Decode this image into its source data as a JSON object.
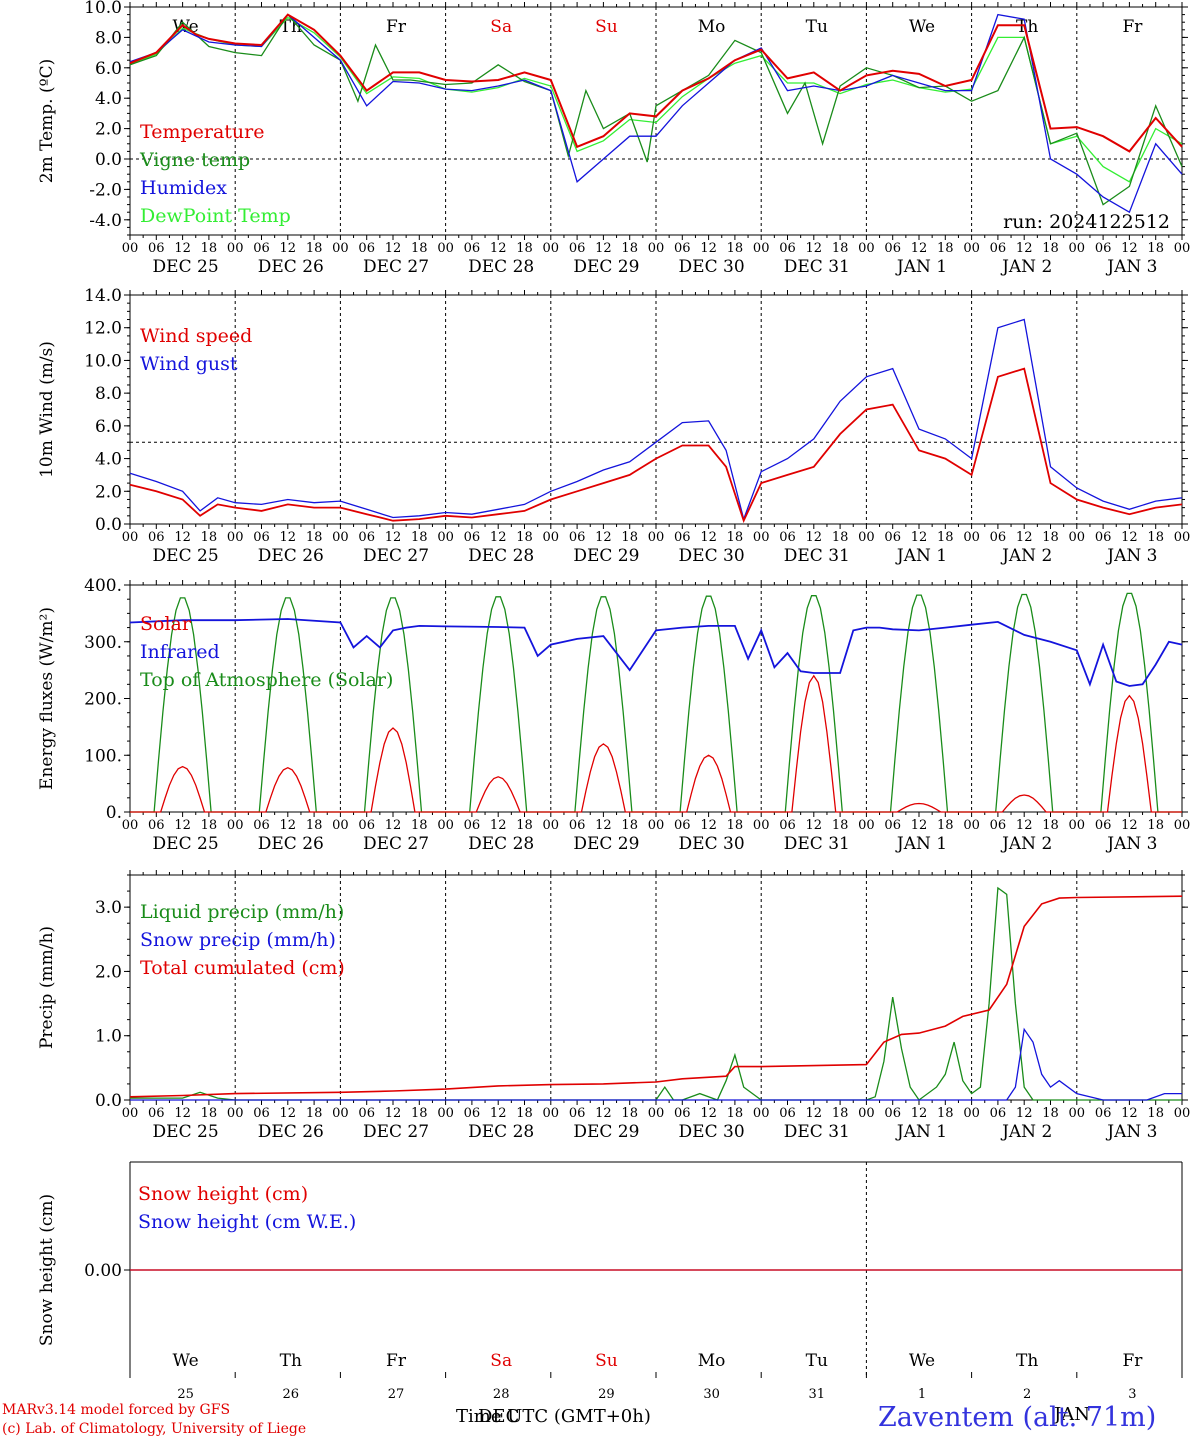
{
  "colors": {
    "red": "#e00000",
    "green": "#1a8c1a",
    "blue": "#1414dc",
    "lime": "#33ee33",
    "black": "#000000"
  },
  "days": {
    "weekdays": [
      "We",
      "Th",
      "Fr",
      "Sa",
      "Su",
      "Mo",
      "Tu",
      "We",
      "Th",
      "Fr"
    ],
    "weekday_colors": [
      "black",
      "black",
      "black",
      "red",
      "red",
      "black",
      "black",
      "black",
      "black",
      "black"
    ],
    "dates": [
      "DEC 25",
      "DEC 26",
      "DEC 27",
      "DEC 28",
      "DEC 29",
      "DEC 30",
      "DEC 31",
      "JAN 1",
      "JAN 2",
      "JAN 3"
    ],
    "day_numbers": [
      "25",
      "26",
      "27",
      "28",
      "29",
      "30",
      "31",
      "1",
      "2",
      "3"
    ],
    "hour_ticks": [
      "00",
      "06",
      "12",
      "18"
    ]
  },
  "chart_data": [
    {
      "type": "line",
      "id": "temperature",
      "ylabel": "2m Temp. (ºC)",
      "ylim": [
        -5,
        10
      ],
      "yticks": [
        "-4.0",
        "-2.0",
        "0.0",
        "2.0",
        "4.0",
        "6.0",
        "8.0",
        "10.0"
      ],
      "yticks_values": [
        -4,
        -2,
        0,
        2,
        4,
        6,
        8,
        10
      ],
      "xlim_hours": [
        0,
        240
      ],
      "reference_line": 0,
      "annotation": "run: 2024122512",
      "series": [
        {
          "name": "Temperature",
          "color": "red",
          "x": [
            0,
            6,
            12,
            15,
            18,
            24,
            30,
            36,
            42,
            48,
            54,
            60,
            66,
            72,
            78,
            84,
            90,
            96,
            102,
            108,
            114,
            120,
            126,
            132,
            138,
            144,
            150,
            156,
            162,
            168,
            174,
            180,
            186,
            192,
            198,
            204,
            210,
            216,
            222,
            228,
            234,
            240
          ],
          "y": [
            6.3,
            7.0,
            8.8,
            8.2,
            7.9,
            7.6,
            7.5,
            9.5,
            8.5,
            6.8,
            4.5,
            5.7,
            5.7,
            5.2,
            5.1,
            5.2,
            5.7,
            5.2,
            0.8,
            1.5,
            3.0,
            2.8,
            4.5,
            5.3,
            6.5,
            7.2,
            5.3,
            5.7,
            4.5,
            5.5,
            5.8,
            5.6,
            4.8,
            5.2,
            8.8,
            8.8,
            2.0,
            2.1,
            1.5,
            0.5,
            2.7,
            0.8
          ]
        },
        {
          "name": "Vigne temp",
          "color": "green",
          "x": [
            0,
            6,
            12,
            18,
            24,
            30,
            36,
            42,
            48,
            52,
            56,
            60,
            64,
            72,
            78,
            84,
            90,
            96,
            100,
            104,
            108,
            114,
            118,
            120,
            126,
            132,
            138,
            144,
            150,
            154,
            158,
            162,
            168,
            174,
            180,
            186,
            192,
            198,
            204,
            210,
            216,
            222,
            228,
            234,
            240
          ],
          "y": [
            6.2,
            6.8,
            9.0,
            7.4,
            7.0,
            6.8,
            9.5,
            7.5,
            6.5,
            3.8,
            7.5,
            5.2,
            5.2,
            4.9,
            5.0,
            6.2,
            5.1,
            4.5,
            0.2,
            4.5,
            2.0,
            3.0,
            -0.2,
            3.5,
            4.5,
            5.5,
            7.8,
            7.0,
            3.0,
            5.0,
            1.0,
            4.8,
            6.0,
            5.5,
            4.7,
            4.8,
            3.8,
            4.5,
            8.0,
            1.0,
            1.7,
            -3.0,
            -1.8,
            3.5,
            -0.5
          ]
        },
        {
          "name": "Humidex",
          "color": "blue",
          "x": [
            0,
            6,
            12,
            18,
            24,
            30,
            36,
            42,
            48,
            54,
            60,
            66,
            72,
            78,
            84,
            90,
            96,
            102,
            108,
            114,
            120,
            126,
            132,
            138,
            144,
            150,
            156,
            162,
            168,
            174,
            180,
            186,
            192,
            198,
            204,
            210,
            216,
            222,
            228,
            234,
            240
          ],
          "y": [
            6.4,
            7.0,
            8.5,
            7.7,
            7.5,
            7.4,
            9.5,
            8.0,
            6.5,
            3.5,
            5.1,
            5.0,
            4.6,
            4.5,
            4.8,
            5.2,
            4.5,
            -1.5,
            0.0,
            1.5,
            1.5,
            3.5,
            5.0,
            6.5,
            7.3,
            4.5,
            4.8,
            4.5,
            4.8,
            5.5,
            5.0,
            4.5,
            4.5,
            9.5,
            9.2,
            0.0,
            -1.0,
            -2.5,
            -3.5,
            1.0,
            -1.0
          ]
        },
        {
          "name": "DewPoint Temp",
          "color": "lime",
          "x": [
            0,
            6,
            12,
            18,
            24,
            30,
            36,
            42,
            48,
            54,
            60,
            66,
            72,
            78,
            84,
            90,
            96,
            102,
            108,
            114,
            120,
            126,
            132,
            138,
            144,
            150,
            156,
            162,
            168,
            174,
            180,
            186,
            192,
            198,
            204,
            210,
            216,
            222,
            228,
            234,
            240
          ],
          "y": [
            6.2,
            6.9,
            8.6,
            7.9,
            7.5,
            7.4,
            9.3,
            8.3,
            6.7,
            4.3,
            5.4,
            5.3,
            4.6,
            4.4,
            4.7,
            5.3,
            4.8,
            0.5,
            1.2,
            2.6,
            2.4,
            4.1,
            5.3,
            6.3,
            6.8,
            5.0,
            5.0,
            4.3,
            4.9,
            5.2,
            4.7,
            4.4,
            4.6,
            8.0,
            8.0,
            1.0,
            1.5,
            -0.5,
            -1.5,
            2.0,
            1.0
          ]
        }
      ]
    },
    {
      "type": "line",
      "id": "wind",
      "ylabel": "10m Wind (m/s)",
      "ylim": [
        0,
        14
      ],
      "yticks": [
        "0.0",
        "2.0",
        "4.0",
        "6.0",
        "8.0",
        "10.0",
        "12.0",
        "14.0"
      ],
      "yticks_values": [
        0,
        2,
        4,
        6,
        8,
        10,
        12,
        14
      ],
      "xlim_hours": [
        0,
        240
      ],
      "reference_line": 5,
      "series": [
        {
          "name": "Wind speed",
          "color": "red",
          "x": [
            0,
            6,
            12,
            16,
            20,
            24,
            30,
            36,
            42,
            48,
            54,
            60,
            66,
            72,
            78,
            84,
            90,
            96,
            102,
            108,
            114,
            120,
            126,
            132,
            136,
            140,
            144,
            150,
            156,
            162,
            168,
            174,
            180,
            186,
            192,
            198,
            204,
            210,
            216,
            222,
            228,
            234,
            240
          ],
          "y": [
            2.4,
            2.0,
            1.5,
            0.5,
            1.2,
            1.0,
            0.8,
            1.2,
            1.0,
            1.0,
            0.6,
            0.2,
            0.3,
            0.5,
            0.4,
            0.6,
            0.8,
            1.5,
            2.0,
            2.5,
            3.0,
            4.0,
            4.8,
            4.8,
            3.5,
            0.2,
            2.5,
            3.0,
            3.5,
            5.5,
            7.0,
            7.3,
            4.5,
            4.0,
            3.0,
            9.0,
            9.5,
            2.5,
            1.5,
            1.0,
            0.6,
            1.0,
            1.2
          ]
        },
        {
          "name": "Wind gust",
          "color": "blue",
          "x": [
            0,
            6,
            12,
            16,
            20,
            24,
            30,
            36,
            42,
            48,
            54,
            60,
            66,
            72,
            78,
            84,
            90,
            96,
            102,
            108,
            114,
            120,
            126,
            132,
            136,
            140,
            144,
            150,
            156,
            162,
            168,
            174,
            180,
            186,
            192,
            198,
            204,
            210,
            216,
            222,
            228,
            234,
            240
          ],
          "y": [
            3.1,
            2.6,
            2.0,
            0.8,
            1.6,
            1.3,
            1.2,
            1.5,
            1.3,
            1.4,
            0.9,
            0.4,
            0.5,
            0.7,
            0.6,
            0.9,
            1.2,
            2.0,
            2.6,
            3.3,
            3.8,
            5.0,
            6.2,
            6.3,
            4.5,
            0.3,
            3.2,
            4.0,
            5.2,
            7.5,
            9.0,
            9.5,
            5.8,
            5.2,
            4.0,
            12.0,
            12.5,
            3.5,
            2.2,
            1.4,
            0.9,
            1.4,
            1.6
          ]
        }
      ]
    },
    {
      "type": "line",
      "id": "energy",
      "ylabel": "Energy fluxes (W/m²)",
      "ylim": [
        0,
        400
      ],
      "yticks": [
        "0.",
        "100.",
        "200.",
        "300.",
        "400."
      ],
      "yticks_values": [
        0,
        100,
        200,
        300,
        400
      ],
      "xlim_hours": [
        0,
        240
      ],
      "series": [
        {
          "name": "Solar",
          "color": "red",
          "peaks": [
            {
              "day": 0,
              "value": 80
            },
            {
              "day": 1,
              "value": 78
            },
            {
              "day": 2,
              "value": 148
            },
            {
              "day": 3,
              "value": 62
            },
            {
              "day": 4,
              "value": 120
            },
            {
              "day": 5,
              "value": 100
            },
            {
              "day": 6,
              "value": 240
            },
            {
              "day": 7,
              "value": 15
            },
            {
              "day": 8,
              "value": 30
            },
            {
              "day": 9,
              "value": 205
            }
          ]
        },
        {
          "name": "Infrared",
          "color": "blue",
          "x": [
            0,
            12,
            24,
            36,
            48,
            51,
            54,
            57,
            60,
            63,
            66,
            72,
            84,
            90,
            93,
            96,
            102,
            108,
            114,
            120,
            126,
            132,
            138,
            141,
            144,
            147,
            150,
            153,
            156,
            162,
            165,
            168,
            171,
            174,
            180,
            186,
            192,
            198,
            204,
            210,
            216,
            219,
            222,
            225,
            228,
            231,
            234,
            237,
            240
          ],
          "y": [
            334,
            338,
            338,
            340,
            334,
            290,
            310,
            290,
            320,
            325,
            328,
            327,
            326,
            325,
            275,
            295,
            305,
            310,
            250,
            320,
            325,
            328,
            328,
            270,
            320,
            255,
            280,
            248,
            245,
            245,
            320,
            325,
            325,
            322,
            320,
            325,
            330,
            335,
            312,
            300,
            285,
            225,
            295,
            230,
            222,
            225,
            260,
            300,
            295
          ]
        },
        {
          "name": "Top of Atmosphere (Solar)",
          "color": "green",
          "peaks": [
            {
              "day": 0,
              "value": 380
            },
            {
              "day": 1,
              "value": 380
            },
            {
              "day": 2,
              "value": 380
            },
            {
              "day": 3,
              "value": 382
            },
            {
              "day": 4,
              "value": 382
            },
            {
              "day": 5,
              "value": 383
            },
            {
              "day": 6,
              "value": 384
            },
            {
              "day": 7,
              "value": 385
            },
            {
              "day": 8,
              "value": 386
            },
            {
              "day": 9,
              "value": 388
            }
          ]
        }
      ]
    },
    {
      "type": "line",
      "id": "precip",
      "ylabel": "Precip (mm/h)",
      "ylim": [
        0,
        3.5
      ],
      "yticks": [
        "0.0",
        "1.0",
        "2.0",
        "3.0"
      ],
      "yticks_values": [
        0,
        1,
        2,
        3
      ],
      "xlim_hours": [
        0,
        240
      ],
      "series": [
        {
          "name": "Liquid precip (mm/h)",
          "color": "green",
          "x": [
            0,
            12,
            16,
            20,
            24,
            60,
            96,
            120,
            122,
            124,
            126,
            130,
            134,
            136,
            138,
            140,
            144,
            168,
            170,
            172,
            174,
            176,
            178,
            180,
            184,
            186,
            188,
            190,
            192,
            194,
            196,
            198,
            200,
            202,
            204,
            206,
            208,
            210,
            240
          ],
          "y": [
            0.03,
            0.03,
            0.12,
            0.03,
            0.0,
            0.0,
            0.0,
            0.0,
            0.2,
            0.0,
            0.0,
            0.1,
            0.0,
            0.3,
            0.7,
            0.2,
            0.0,
            0.0,
            0.05,
            0.6,
            1.6,
            0.8,
            0.2,
            0.0,
            0.2,
            0.4,
            0.9,
            0.3,
            0.1,
            0.2,
            1.5,
            3.3,
            3.2,
            1.5,
            0.2,
            0.0,
            0.0,
            0.0,
            0.0
          ]
        },
        {
          "name": "Snow precip (mm/h)",
          "color": "blue",
          "x": [
            0,
            192,
            200,
            202,
            204,
            206,
            208,
            210,
            212,
            216,
            222,
            232,
            236,
            240
          ],
          "y": [
            0.0,
            0.0,
            0.0,
            0.2,
            1.1,
            0.9,
            0.4,
            0.2,
            0.3,
            0.1,
            0.0,
            0.0,
            0.1,
            0.1
          ]
        },
        {
          "name": "Total cumulated (cm)",
          "color": "red",
          "x": [
            0,
            12,
            24,
            48,
            60,
            72,
            84,
            96,
            108,
            120,
            126,
            136,
            138,
            144,
            168,
            172,
            176,
            180,
            186,
            190,
            196,
            200,
            204,
            208,
            212,
            216,
            240
          ],
          "y": [
            0.05,
            0.07,
            0.1,
            0.12,
            0.14,
            0.17,
            0.22,
            0.24,
            0.25,
            0.28,
            0.33,
            0.37,
            0.52,
            0.52,
            0.55,
            0.9,
            1.02,
            1.04,
            1.15,
            1.3,
            1.4,
            1.8,
            2.7,
            3.05,
            3.14,
            3.15,
            3.17
          ]
        }
      ]
    },
    {
      "type": "line",
      "id": "snow",
      "ylabel": "Snow height (cm)",
      "ytick": "0.00",
      "xlim_hours": [
        0,
        240
      ],
      "series": [
        {
          "name": "Snow height (cm)",
          "color": "red",
          "x": [
            0,
            240
          ],
          "y": [
            0,
            0
          ]
        },
        {
          "name": "Snow height (cm W.E.)",
          "color": "blue",
          "x": [
            0,
            240
          ],
          "y": [
            0,
            0
          ]
        }
      ]
    }
  ],
  "footer": {
    "model": "MARv3.14 model forced by GFS",
    "lab": "(c) Lab. of Climatology, University of Liege",
    "xlabel": "Time UTC (GMT+0h)",
    "overlap_label": "DEC",
    "overlap_label_2": "JAN",
    "station": "Zaventem (alt. 71m)"
  }
}
